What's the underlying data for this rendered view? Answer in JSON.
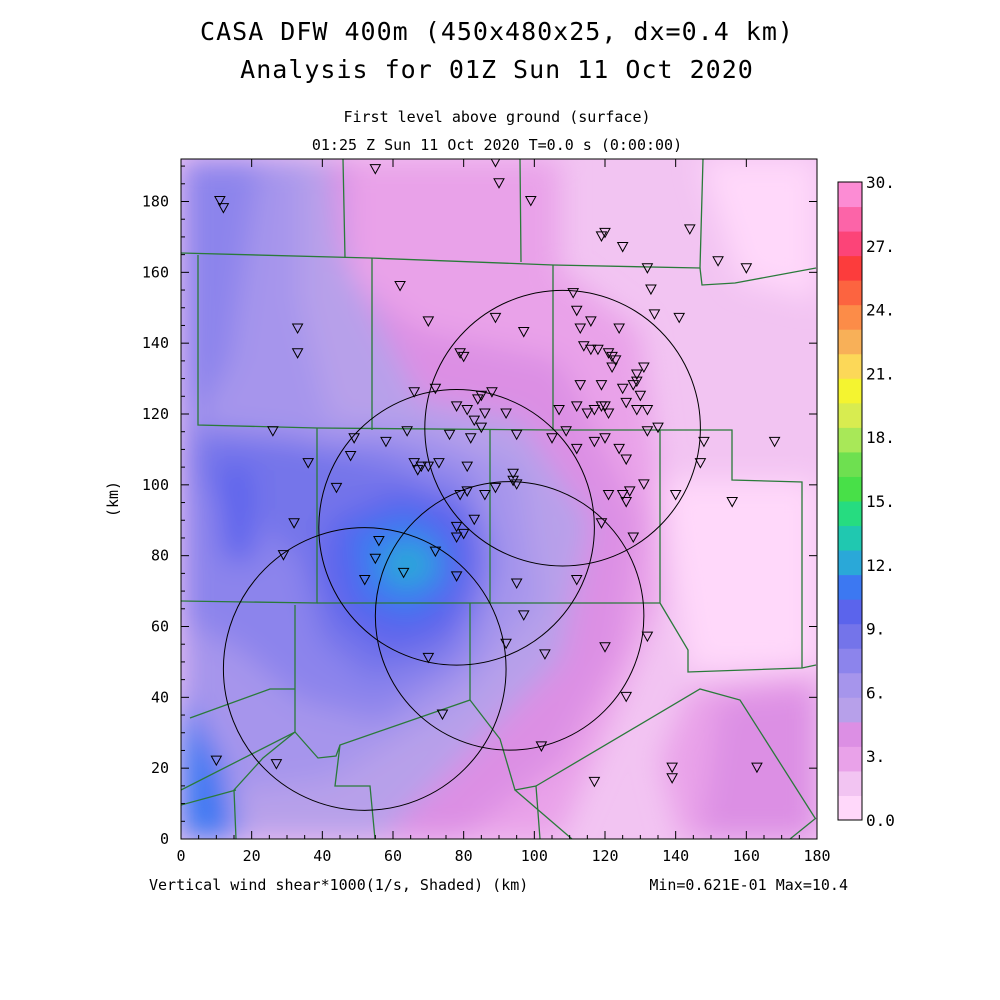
{
  "title_line1": "CASA DFW 400m (450x480x25, dx=0.4 km)",
  "title_line2": "Analysis for 01Z Sun 11 Oct 2020",
  "subtitle_line1": "First level above ground (surface)",
  "subtitle_line2": "01:25 Z Sun 11 Oct 2020   T=0.0 s (0:00:00)",
  "footer_left": "Vertical wind shear*1000(1/s, Shaded)  (km)",
  "footer_right": "Min=0.621E-01 Max=10.4",
  "chart_data": {
    "type": "heatmap",
    "title": "CASA DFW 400m (450x480x25, dx=0.4 km)",
    "xlabel": "(km)",
    "ylabel": "(km)",
    "xlim": [
      0,
      180
    ],
    "ylim": [
      0,
      192
    ],
    "x_ticks": [
      "0",
      "20",
      "40",
      "60",
      "80",
      "100",
      "120",
      "140",
      "160",
      "180"
    ],
    "y_ticks": [
      "0",
      "20",
      "40",
      "60",
      "80",
      "100",
      "120",
      "140",
      "160",
      "180"
    ],
    "colorbar": {
      "range": [
        0,
        30
      ],
      "step": 1.5,
      "labels": [
        "0.0",
        "3.",
        "6.",
        "9.",
        "12.",
        "15.",
        "18.",
        "21.",
        "24.",
        "27.",
        "30."
      ],
      "colors": [
        "#ffd8fa",
        "#f2c4f2",
        "#e9a2e9",
        "#dc8fe4",
        "#b7a0ea",
        "#a695ec",
        "#8c84ec",
        "#7474ea",
        "#5b64ec",
        "#3c78f2",
        "#2aa8d8",
        "#20c8b0",
        "#26dc80",
        "#48e048",
        "#6ee050",
        "#a8e858",
        "#d8ec50",
        "#f4f430",
        "#fcd858",
        "#f8b058",
        "#fc8c48",
        "#fc6440",
        "#fc3c3c",
        "#fc4478",
        "#fc64a8",
        "#fc8cd4"
      ]
    },
    "min": 0.0621,
    "max": 10.4,
    "radar_circles": [
      {
        "cx": 78,
        "cy": 88,
        "r": 39
      },
      {
        "cx": 93,
        "cy": 63,
        "r": 38
      },
      {
        "cx": 52,
        "cy": 48,
        "r": 40
      },
      {
        "cx": 108,
        "cy": 116,
        "r": 39
      }
    ],
    "stations": [
      [
        11,
        180
      ],
      [
        12,
        178
      ],
      [
        55,
        189
      ],
      [
        89,
        191
      ],
      [
        90,
        185
      ],
      [
        99,
        180
      ],
      [
        119,
        170
      ],
      [
        120,
        171
      ],
      [
        125,
        167
      ],
      [
        144,
        172
      ],
      [
        152,
        163
      ],
      [
        160,
        161
      ],
      [
        132,
        161
      ],
      [
        33,
        144
      ],
      [
        33,
        137
      ],
      [
        62,
        156
      ],
      [
        70,
        146
      ],
      [
        89,
        147
      ],
      [
        97,
        143
      ],
      [
        111,
        154
      ],
      [
        112,
        149
      ],
      [
        113,
        144
      ],
      [
        116,
        146
      ],
      [
        124,
        144
      ],
      [
        133,
        155
      ],
      [
        134,
        148
      ],
      [
        141,
        147
      ],
      [
        79,
        137
      ],
      [
        80,
        136
      ],
      [
        114,
        139
      ],
      [
        116,
        138
      ],
      [
        118,
        138
      ],
      [
        121,
        137
      ],
      [
        122,
        136
      ],
      [
        123,
        135
      ],
      [
        122,
        133
      ],
      [
        129,
        131
      ],
      [
        131,
        133
      ],
      [
        129,
        129
      ],
      [
        128,
        128
      ],
      [
        119,
        128
      ],
      [
        113,
        128
      ],
      [
        125,
        127
      ],
      [
        66,
        126
      ],
      [
        72,
        127
      ],
      [
        84,
        124
      ],
      [
        88,
        126
      ],
      [
        78,
        122
      ],
      [
        81,
        121
      ],
      [
        86,
        120
      ],
      [
        85,
        125
      ],
      [
        92,
        120
      ],
      [
        107,
        121
      ],
      [
        112,
        122
      ],
      [
        115,
        120
      ],
      [
        117,
        121
      ],
      [
        119,
        122
      ],
      [
        121,
        120
      ],
      [
        120,
        122
      ],
      [
        126,
        123
      ],
      [
        130,
        125
      ],
      [
        132,
        121
      ],
      [
        129,
        121
      ],
      [
        135,
        116
      ],
      [
        132,
        115
      ],
      [
        26,
        115
      ],
      [
        49,
        113
      ],
      [
        58,
        112
      ],
      [
        64,
        115
      ],
      [
        76,
        114
      ],
      [
        82,
        113
      ],
      [
        85,
        116
      ],
      [
        83,
        118
      ],
      [
        95,
        114
      ],
      [
        105,
        113
      ],
      [
        109,
        115
      ],
      [
        112,
        110
      ],
      [
        117,
        112
      ],
      [
        120,
        113
      ],
      [
        124,
        110
      ],
      [
        126,
        107
      ],
      [
        148,
        112
      ],
      [
        168,
        112
      ],
      [
        147,
        106
      ],
      [
        36,
        106
      ],
      [
        48,
        108
      ],
      [
        66,
        106
      ],
      [
        67,
        104
      ],
      [
        68,
        105
      ],
      [
        70,
        105
      ],
      [
        73,
        106
      ],
      [
        81,
        105
      ],
      [
        94,
        103
      ],
      [
        94,
        101
      ],
      [
        95,
        100
      ],
      [
        89,
        99
      ],
      [
        86,
        97
      ],
      [
        81,
        98
      ],
      [
        79,
        97
      ],
      [
        44,
        99
      ],
      [
        131,
        100
      ],
      [
        127,
        98
      ],
      [
        121,
        97
      ],
      [
        125,
        97
      ],
      [
        126,
        95
      ],
      [
        140,
        97
      ],
      [
        156,
        95
      ],
      [
        32,
        89
      ],
      [
        29,
        80
      ],
      [
        56,
        84
      ],
      [
        78,
        88
      ],
      [
        78,
        85
      ],
      [
        80,
        86
      ],
      [
        83,
        90
      ],
      [
        119,
        89
      ],
      [
        128,
        85
      ],
      [
        55,
        79
      ],
      [
        72,
        81
      ],
      [
        63,
        75
      ],
      [
        52,
        73
      ],
      [
        78,
        74
      ],
      [
        95,
        72
      ],
      [
        112,
        73
      ],
      [
        97,
        63
      ],
      [
        132,
        57
      ],
      [
        120,
        54
      ],
      [
        103,
        52
      ],
      [
        92,
        55
      ],
      [
        70,
        51
      ],
      [
        126,
        40
      ],
      [
        74,
        35
      ],
      [
        102,
        26
      ],
      [
        10,
        22
      ],
      [
        27,
        21
      ],
      [
        139,
        20
      ],
      [
        139,
        17
      ],
      [
        117,
        16
      ],
      [
        163,
        20
      ]
    ]
  }
}
